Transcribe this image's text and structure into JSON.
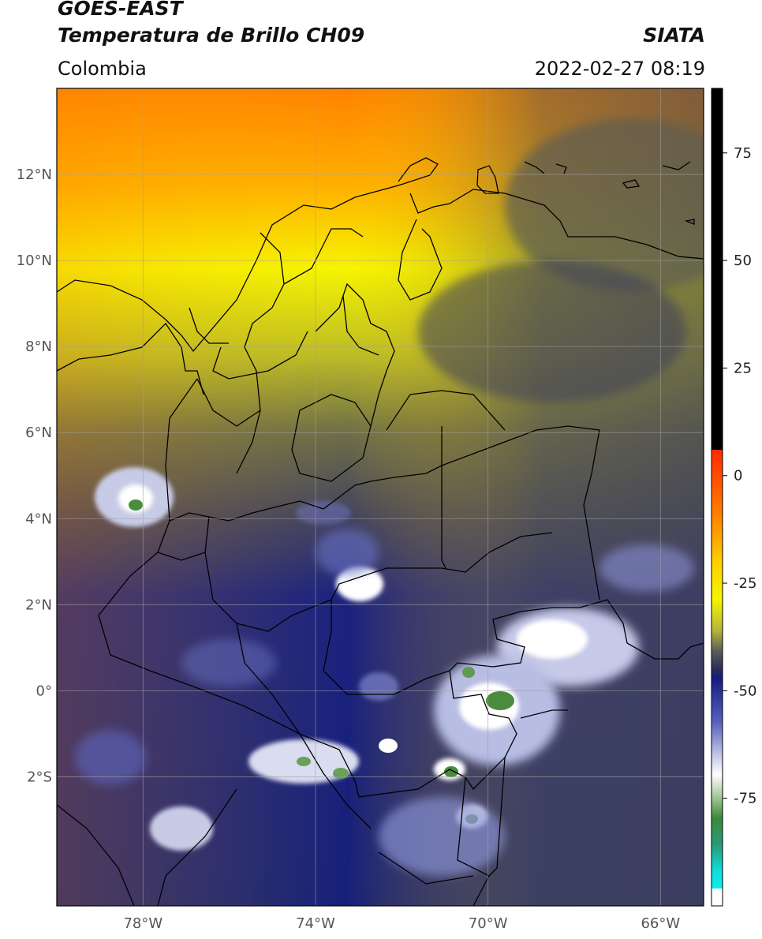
{
  "header": {
    "satellite": "GOES-EAST",
    "product": "Temperatura de Brillo CH09",
    "region": "Colombia",
    "agency": "SIATA",
    "timestamp": "2022-02-27 08:19"
  },
  "map": {
    "lon_range": [
      -80,
      -65
    ],
    "lat_range": [
      -5,
      14
    ],
    "lat_ticks": [
      {
        "value": 12,
        "label": "12°N"
      },
      {
        "value": 10,
        "label": "10°N"
      },
      {
        "value": 8,
        "label": "8°N"
      },
      {
        "value": 6,
        "label": "6°N"
      },
      {
        "value": 4,
        "label": "4°N"
      },
      {
        "value": 2,
        "label": "2°N"
      },
      {
        "value": 0,
        "label": "0°"
      },
      {
        "value": -2,
        "label": "2°S"
      }
    ],
    "lon_ticks": [
      {
        "value": -78,
        "label": "78°W"
      },
      {
        "value": -74,
        "label": "74°W"
      },
      {
        "value": -70,
        "label": "70°W"
      },
      {
        "value": -66,
        "label": "66°W"
      }
    ],
    "colors": {
      "ocean_deep": "#15207a",
      "cold_cloud": "#ffffff",
      "very_cold": "#3f8a3a",
      "warm_orange": "#ff8a00",
      "yellow": "#f4f400",
      "gray": "#5a5a52",
      "border": "#000000",
      "grid": "#9a9a9a"
    }
  },
  "colorbar": {
    "range": [
      -100,
      90
    ],
    "ticks": [
      {
        "value": 75,
        "label": "75"
      },
      {
        "value": 50,
        "label": "50"
      },
      {
        "value": 25,
        "label": "25"
      },
      {
        "value": 0,
        "label": "0"
      },
      {
        "value": -25,
        "label": "-25"
      },
      {
        "value": -50,
        "label": "-50"
      },
      {
        "value": -75,
        "label": "-75"
      }
    ]
  }
}
